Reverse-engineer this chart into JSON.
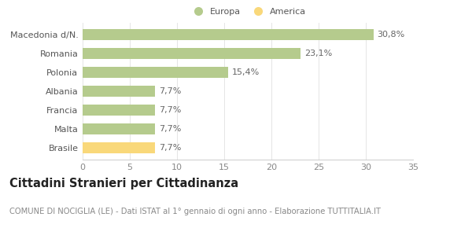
{
  "categories": [
    "Brasile",
    "Malta",
    "Francia",
    "Albania",
    "Polonia",
    "Romania",
    "Macedonia d/N."
  ],
  "values": [
    7.7,
    7.7,
    7.7,
    7.7,
    15.4,
    23.1,
    30.8
  ],
  "labels": [
    "7,7%",
    "7,7%",
    "7,7%",
    "7,7%",
    "15,4%",
    "23,1%",
    "30,8%"
  ],
  "colors": [
    "#f9d87a",
    "#b5cb8d",
    "#b5cb8d",
    "#b5cb8d",
    "#b5cb8d",
    "#b5cb8d",
    "#b5cb8d"
  ],
  "europa_color": "#b5cb8d",
  "america_color": "#f9d87a",
  "xlim": [
    0,
    35
  ],
  "xticks": [
    0,
    5,
    10,
    15,
    20,
    25,
    30,
    35
  ],
  "title": "Cittadini Stranieri per Cittadinanza",
  "subtitle": "COMUNE DI NOCIGLIA (LE) - Dati ISTAT al 1° gennaio di ogni anno - Elaborazione TUTTITALIA.IT",
  "legend_europa": "Europa",
  "legend_america": "America",
  "background_color": "#ffffff",
  "bar_height": 0.6,
  "label_fontsize": 8,
  "tick_fontsize": 8,
  "title_fontsize": 10.5,
  "subtitle_fontsize": 7.2
}
